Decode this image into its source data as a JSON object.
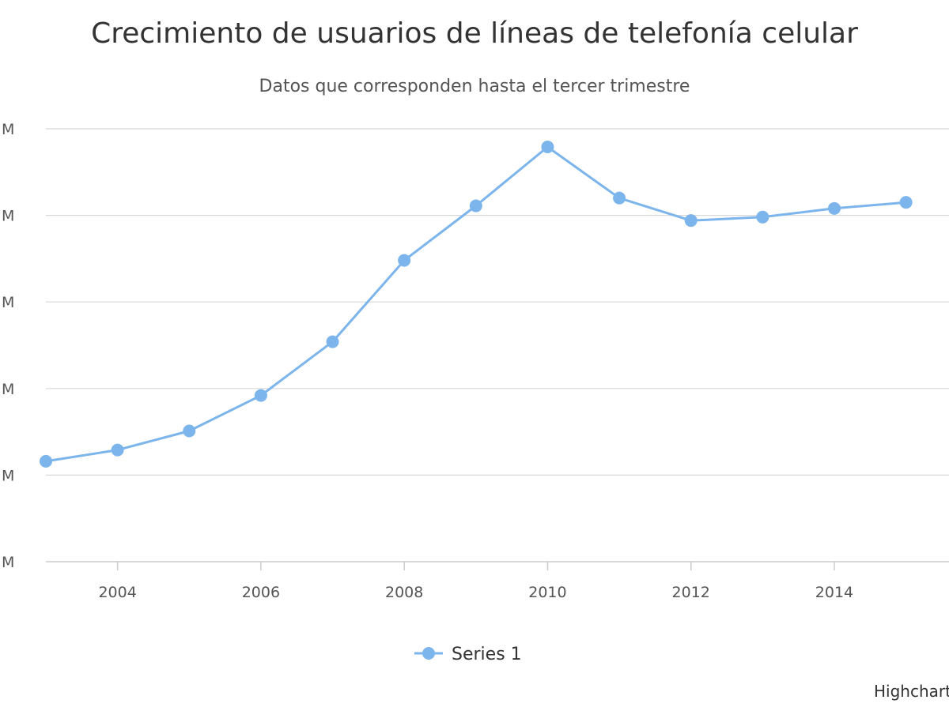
{
  "chart_data": {
    "type": "line",
    "title": "Crecimiento de usuarios de líneas de telefonía celular",
    "subtitle": "Datos que corresponden hasta el tercer trimestre",
    "xlabel": "",
    "ylabel": "",
    "x_ticks": [
      "2004",
      "2006",
      "2008",
      "2010",
      "2012",
      "2014"
    ],
    "y_tick_labels": [
      "M",
      "M",
      "M",
      "M",
      "M",
      "M"
    ],
    "xlim": [
      2003,
      2015.6
    ],
    "ylim": [
      0,
      5
    ],
    "grid": true,
    "legend": "bottom-center",
    "series": [
      {
        "name": "Series 1",
        "color": "#7cb5ec",
        "x": [
          2003,
          2004,
          2005,
          2006,
          2007,
          2008,
          2009,
          2010,
          2011,
          2012,
          2013,
          2014,
          2015
        ],
        "values": [
          1.16,
          1.29,
          1.51,
          1.92,
          2.54,
          3.48,
          4.11,
          4.79,
          4.2,
          3.94,
          3.98,
          4.08,
          4.15
        ]
      }
    ]
  },
  "credits": "Highcharts.com"
}
